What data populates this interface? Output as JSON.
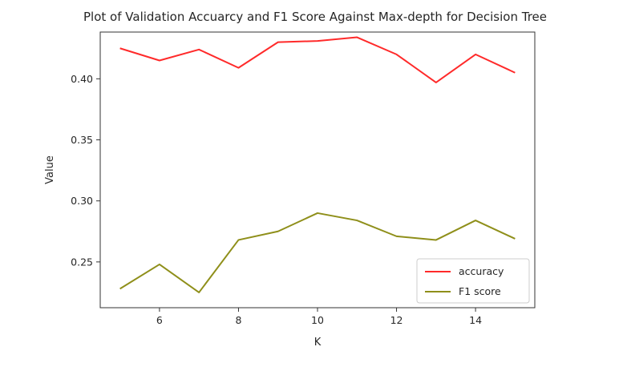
{
  "chart_data": {
    "type": "line",
    "title": "Plot of Validation Accuarcy and F1 Score Against Max-depth for Decision Tree",
    "xlabel": "K",
    "ylabel": "Value",
    "x": [
      5,
      6,
      7,
      8,
      9,
      10,
      11,
      12,
      13,
      14,
      15
    ],
    "xlim": [
      4.5,
      15.5
    ],
    "ylim": [
      0.2125,
      0.4383
    ],
    "xticks": [
      6,
      8,
      10,
      12,
      14
    ],
    "yticks": [
      0.25,
      0.3,
      0.35,
      0.4
    ],
    "xtick_labels": [
      "6",
      "8",
      "10",
      "12",
      "14"
    ],
    "ytick_labels": [
      "0.25",
      "0.30",
      "0.35",
      "0.40"
    ],
    "grid": false,
    "legend_position": "lower-right",
    "series": [
      {
        "name": "accuracy",
        "color": "#ff2a2a",
        "values": [
          0.425,
          0.415,
          0.424,
          0.409,
          0.43,
          0.431,
          0.434,
          0.42,
          0.397,
          0.42,
          0.405
        ]
      },
      {
        "name": "F1 score",
        "color": "#8f8f1a",
        "values": [
          0.228,
          0.248,
          0.225,
          0.268,
          0.275,
          0.29,
          0.284,
          0.271,
          0.268,
          0.284,
          0.269
        ]
      }
    ]
  }
}
